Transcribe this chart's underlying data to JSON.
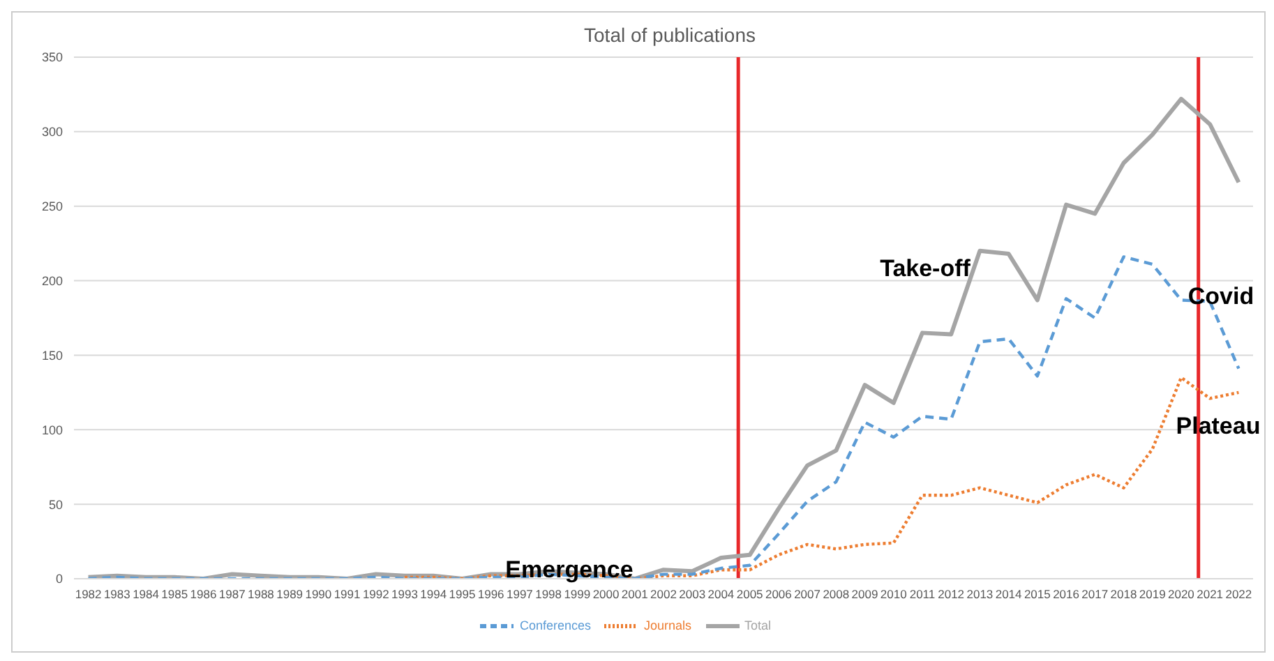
{
  "chart_data": {
    "type": "line",
    "title": "Total of publications",
    "x": [
      1982,
      1983,
      1984,
      1985,
      1986,
      1987,
      1988,
      1989,
      1990,
      1991,
      1992,
      1993,
      1994,
      1995,
      1996,
      1997,
      1998,
      1999,
      2000,
      2001,
      2002,
      2003,
      2004,
      2005,
      2006,
      2007,
      2008,
      2009,
      2010,
      2011,
      2012,
      2013,
      2014,
      2015,
      2016,
      2017,
      2018,
      2019,
      2020,
      2021,
      2022
    ],
    "xlim": [
      1981.5,
      2022.5
    ],
    "xticks": [
      1982,
      1983,
      1984,
      1985,
      1986,
      1987,
      1988,
      1989,
      1990,
      1991,
      1992,
      1993,
      1994,
      1995,
      1996,
      1997,
      1998,
      1999,
      2000,
      2001,
      2002,
      2003,
      2004,
      2005,
      2006,
      2007,
      2008,
      2009,
      2010,
      2011,
      2012,
      2013,
      2014,
      2015,
      2016,
      2017,
      2018,
      2019,
      2020,
      2021,
      2022
    ],
    "ylim": [
      0,
      350
    ],
    "yticks": [
      0,
      50,
      100,
      150,
      200,
      250,
      300,
      350
    ],
    "series": [
      {
        "name": "Conferences",
        "color": "#5b9bd5",
        "line_style": "dashed",
        "values": [
          0,
          1,
          0,
          0,
          0,
          0,
          0,
          0,
          0,
          0,
          1,
          0,
          0,
          0,
          1,
          1,
          3,
          2,
          1,
          0,
          3,
          3,
          7,
          9,
          30,
          52,
          65,
          105,
          95,
          109,
          107,
          159,
          161,
          136,
          188,
          175,
          216,
          211,
          187,
          186,
          141
        ]
      },
      {
        "name": "Journals",
        "color": "#ed7d31",
        "line_style": "dotted",
        "values": [
          null,
          null,
          null,
          null,
          null,
          null,
          null,
          null,
          null,
          null,
          null,
          1,
          1,
          0,
          2,
          2,
          3,
          3,
          2,
          0,
          2,
          2,
          6,
          6,
          16,
          23,
          20,
          23,
          24,
          56,
          56,
          61,
          56,
          51,
          63,
          70,
          61,
          87,
          135,
          121,
          125
        ]
      },
      {
        "name": "Total",
        "color": "#a5a5a5",
        "line_style": "solid",
        "values": [
          1,
          2,
          1,
          1,
          0,
          3,
          2,
          1,
          1,
          0,
          3,
          2,
          2,
          0,
          3,
          3,
          5,
          4,
          3,
          0,
          6,
          5,
          14,
          16,
          47,
          76,
          86,
          130,
          118,
          165,
          164,
          220,
          218,
          187,
          251,
          245,
          279,
          298,
          322,
          305,
          266
        ]
      }
    ],
    "ref_lines": [
      {
        "axis": "x",
        "value": 2004.6,
        "color": "#e8282b"
      },
      {
        "axis": "x",
        "value": 2020.6,
        "color": "#e8282b"
      }
    ],
    "annotations": [
      "Emergence",
      "Take-off",
      "Covid",
      "Plateau"
    ],
    "grid": "y",
    "legend": "bottom",
    "marker": "none"
  }
}
